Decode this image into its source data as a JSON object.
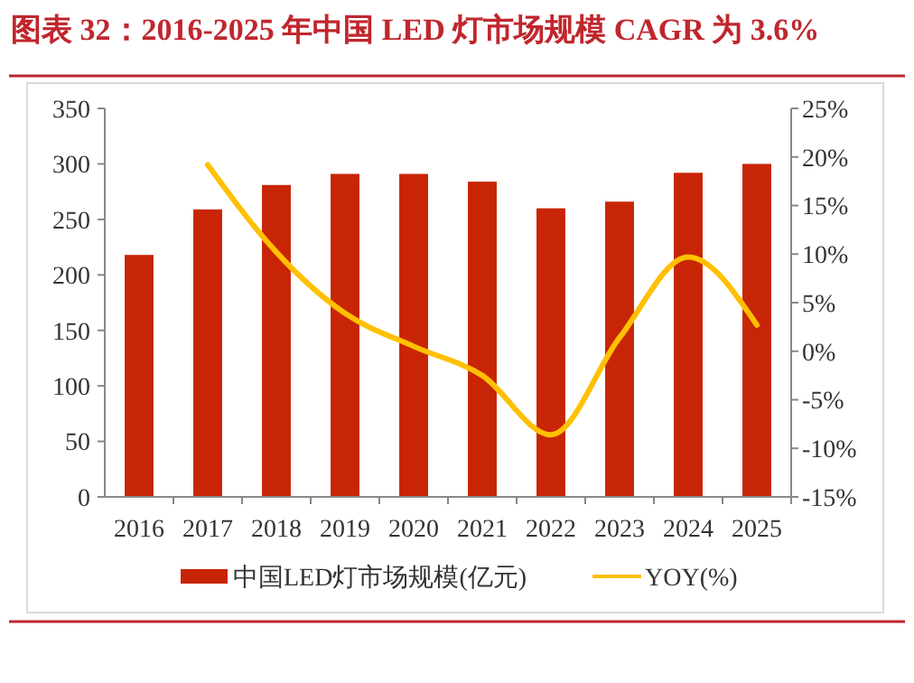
{
  "chart_data": {
    "type": "bar",
    "title": "图表 32：2016-2025 年中国 LED 灯市场规模 CAGR 为 3.6%",
    "categories": [
      "2016",
      "2017",
      "2018",
      "2019",
      "2020",
      "2021",
      "2022",
      "2023",
      "2024",
      "2025"
    ],
    "series": [
      {
        "name": "中国LED灯市场规模(亿元)",
        "color": "#c82506",
        "values": [
          218,
          259,
          281,
          291,
          291,
          284,
          260,
          266,
          292,
          300
        ]
      },
      {
        "name": "YOY(%)",
        "type": "line",
        "axis": "y2",
        "color": "#ffc000",
        "values": [
          null,
          19.2,
          10.2,
          3.9,
          0.5,
          -2.5,
          -8.6,
          1.4,
          9.7,
          2.7
        ]
      }
    ],
    "ylim": [
      0,
      350
    ],
    "yticks": [
      0,
      50,
      100,
      150,
      200,
      250,
      300,
      350
    ],
    "y2lim": [
      -15,
      25
    ],
    "y2ticks": [
      {
        "value": -15,
        "label": "-15%"
      },
      {
        "value": -10,
        "label": "-10%"
      },
      {
        "value": -5,
        "label": "-5%"
      },
      {
        "value": 0,
        "label": "0%"
      },
      {
        "value": 5,
        "label": "5%"
      },
      {
        "value": 10,
        "label": "10%"
      },
      {
        "value": 15,
        "label": "15%"
      },
      {
        "value": 20,
        "label": "20%"
      },
      {
        "value": 25,
        "label": "25%"
      }
    ],
    "grid": false,
    "legend": "bottom",
    "marker": "none",
    "line_style": "solid"
  }
}
